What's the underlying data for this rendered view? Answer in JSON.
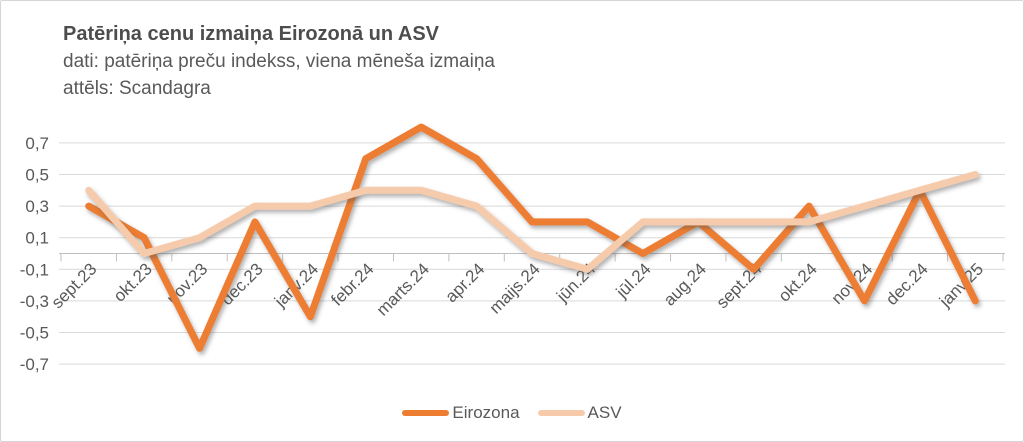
{
  "chart_data": {
    "type": "line",
    "title": "Patēriņa cenu izmaiņa Eirozonā un ASV",
    "subtitle": "dati: patēriņa preču indekss, viena mēneša izmaiņa",
    "attribution": "attēls: Scandagra",
    "categories": [
      "sept.23",
      "okt.23",
      "nov.23",
      "dec.23",
      "janv.24",
      "febr.24",
      "marts.24",
      "apr.24",
      "maijs.24",
      "jūn.24",
      "jūl.24",
      "aug.24",
      "sept.24",
      "okt.24",
      "nov.24",
      "dec.24",
      "janv.25"
    ],
    "series": [
      {
        "name": "Eirozona",
        "color": "#ED7D31",
        "values": [
          0.3,
          0.1,
          -0.6,
          0.2,
          -0.4,
          0.6,
          0.8,
          0.6,
          0.2,
          0.2,
          0.0,
          0.2,
          -0.1,
          0.3,
          -0.3,
          0.4,
          -0.3
        ]
      },
      {
        "name": "ASV",
        "color": "#F6CBAC",
        "values": [
          0.4,
          0.0,
          0.1,
          0.3,
          0.3,
          0.4,
          0.4,
          0.3,
          0.0,
          -0.1,
          0.2,
          0.2,
          0.2,
          0.2,
          0.3,
          0.4,
          0.5
        ]
      }
    ],
    "xlabel": "",
    "ylabel": "",
    "ylim": [
      -0.8,
      0.85
    ],
    "yticks": [
      0.7,
      0.5,
      0.3,
      0.1,
      -0.1,
      -0.3,
      -0.5,
      -0.7
    ],
    "ytick_labels": [
      "0,7",
      "0,5",
      "0,3",
      "0,1",
      "-0,1",
      "-0,3",
      "-0,5",
      "-0,7"
    ],
    "decimal_separator": ",",
    "grid": "horizontal",
    "legend_position": "bottom"
  },
  "colors": {
    "background": "#ffffff",
    "frame_border": "#d5d5d5",
    "gridline": "#d9d9d9",
    "axis": "#bfbfbf",
    "text": "#595959"
  }
}
